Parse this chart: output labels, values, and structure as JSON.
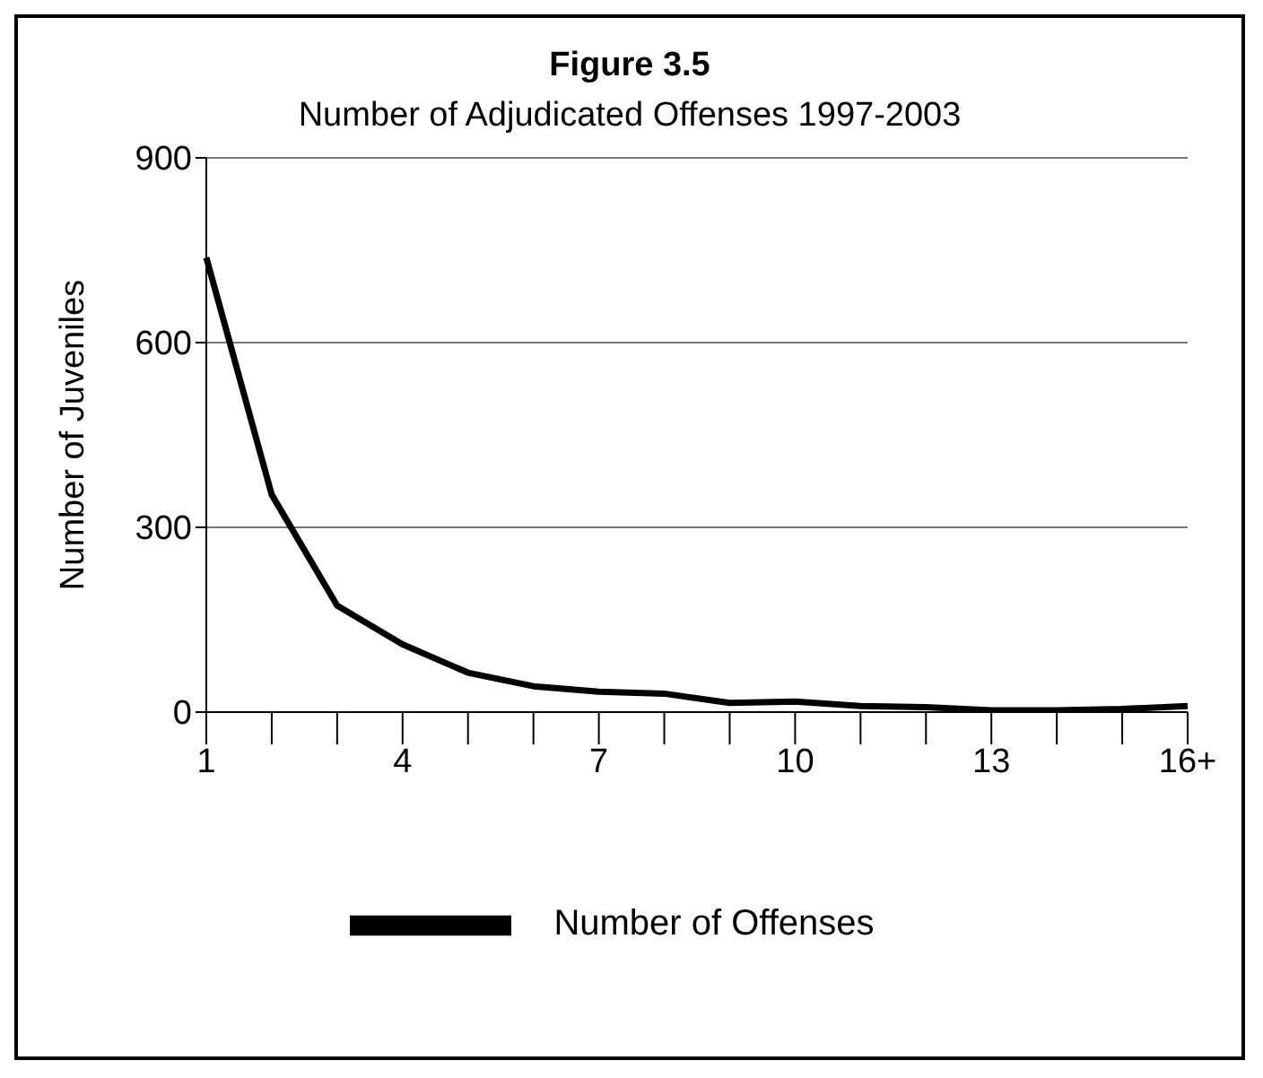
{
  "chart_data": {
    "type": "line",
    "title": "Figure 3.5",
    "subtitle": "Number of Adjudicated Offenses 1997-2003",
    "ylabel": "Number of Juveniles",
    "categories": [
      "1",
      null,
      null,
      "4",
      null,
      null,
      "7",
      null,
      null,
      "10",
      null,
      null,
      "13",
      null,
      null,
      "16+"
    ],
    "series": [
      {
        "name": "Number of Offenses",
        "color": "#000000",
        "values": [
          738,
          353,
          173,
          110,
          64,
          42,
          33,
          30,
          15,
          17,
          10,
          8,
          3,
          3,
          5,
          10
        ]
      }
    ],
    "ylim": [
      0,
      900
    ],
    "yticks": [
      0,
      300,
      600,
      900
    ],
    "grid": "y",
    "legend": "bottom",
    "marker": "none",
    "line_style": "solid"
  }
}
